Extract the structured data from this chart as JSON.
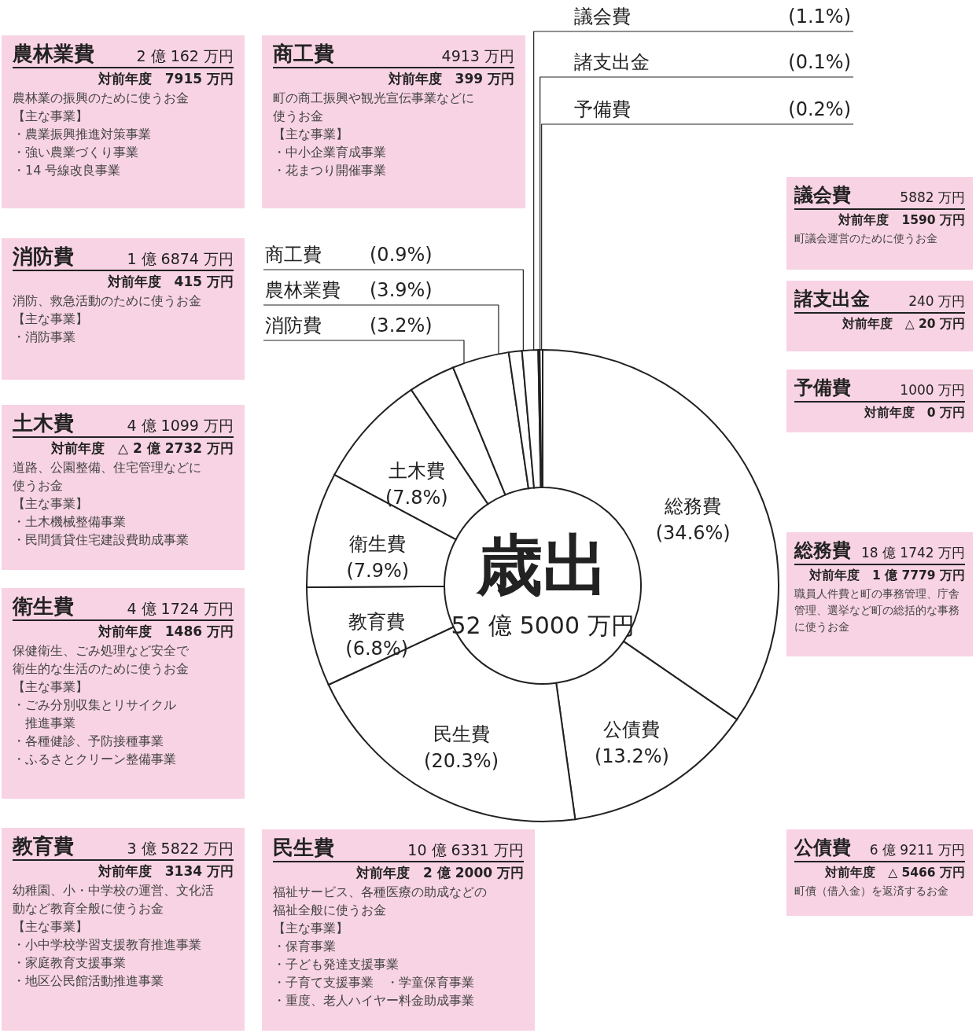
{
  "chart_data": [
    {
      "type": "donut",
      "title": "歳出",
      "subtitle": "52 億 5000 万円",
      "categories": [
        "総務費",
        "公債費",
        "民生費",
        "教育費",
        "衛生費",
        "土木費",
        "消防費",
        "農林業費",
        "商工費",
        "議会費",
        "諸支出金",
        "予備費"
      ],
      "values": [
        34.6,
        13.2,
        20.3,
        6.8,
        7.9,
        7.8,
        3.2,
        3.9,
        0.9,
        1.1,
        0.1,
        0.2
      ],
      "value_labels": [
        "(34.6%)",
        "(13.2%)",
        "(20.3%)",
        "(6.8%)",
        "(7.9%)",
        "(7.8%)",
        "(3.2%)",
        "(3.9%)",
        "(0.9%)",
        "(1.1%)",
        "(0.1%)",
        "(0.2%)"
      ],
      "colors": [
        "#ffffff",
        "#ffffff",
        "#ffffff",
        "#ffffff",
        "#ffffff",
        "#ffffff",
        "#ffffff",
        "#ffffff",
        "#ffffff",
        "#ffffff",
        "#ffffff",
        "#ffffff"
      ]
    },
    {
      "type": "other",
      "title": "農林業費",
      "subtitle": "2 億 162 万円",
      "annotations": [
        "対前年度　7915 万円",
        "農林業の振興のために使うお金",
        "【主な事業】",
        "・農業振興推進対策事業",
        "・強い農業づくり事業",
        "・14 号線改良事業"
      ]
    },
    {
      "type": "other",
      "title": "商工費",
      "subtitle": "4913 万円",
      "annotations": [
        "対前年度　399 万円",
        "町の商工振興や観光宣伝事業などに",
        "使うお金",
        "【主な事業】",
        "・中小企業育成事業",
        "・花まつり開催事業"
      ]
    },
    {
      "type": "other",
      "title": "議会費",
      "subtitle": "5882 万円",
      "annotations": [
        "対前年度　1590 万円",
        "町議会運営のために使うお金"
      ]
    },
    {
      "type": "other",
      "title": "諸支出金",
      "subtitle": "240 万円",
      "annotations": [
        "対前年度　△ 20 万円"
      ]
    },
    {
      "type": "other",
      "title": "予備費",
      "subtitle": "1000 万円",
      "annotations": [
        "対前年度　0 万円"
      ]
    },
    {
      "type": "other",
      "title": "消防費",
      "subtitle": "1 億 6874 万円",
      "annotations": [
        "対前年度　415 万円",
        "消防、救急活動のために使うお金",
        "【主な事業】",
        "・消防事業"
      ]
    },
    {
      "type": "other",
      "title": "土木費",
      "subtitle": "4 億 1099 万円",
      "annotations": [
        "対前年度　△ 2 億 2732 万円",
        "道路、公園整備、住宅管理などに",
        "使うお金",
        "【主な事業】",
        "・土木機械整備事業",
        "・民間賃貸住宅建設費助成事業"
      ]
    },
    {
      "type": "other",
      "title": "総務費",
      "subtitle": "18 億 1742 万円",
      "annotations": [
        "対前年度　1 億 7779 万円",
        "職員人件費と町の事務管理、庁舎",
        "管理、選挙など町の総括的な事務",
        "に使うお金"
      ]
    },
    {
      "type": "other",
      "title": "衛生費",
      "subtitle": "4 億 1724 万円",
      "annotations": [
        "対前年度　1486 万円",
        "保健衛生、ごみ処理など安全で",
        "衛生的な生活のために使うお金",
        "【主な事業】",
        "・ごみ分別収集とリサイクル",
        "　推進事業",
        "・各種健診、予防接種事業",
        "・ふるさとクリーン整備事業"
      ]
    },
    {
      "type": "other",
      "title": "教育費",
      "subtitle": "3 億 5822 万円",
      "annotations": [
        "対前年度　3134 万円",
        "幼稚園、小・中学校の運営、文化活",
        "動など教育全般に使うお金",
        "【主な事業】",
        "・小中学校学習支援教育推進事業",
        "・家庭教育支援事業",
        "・地区公民館活動推進事業"
      ]
    },
    {
      "type": "other",
      "title": "民生費",
      "subtitle": "10 億 6331 万円",
      "annotations": [
        "対前年度　2 億 2000 万円",
        "福祉サービス、各種医療の助成などの",
        "福祉全般に使うお金",
        "【主な事業】",
        "・保育事業",
        "・子ども発達支援事業",
        "・子育て支援事業　・学童保育事業",
        "・重度、老人ハイヤー料金助成事業"
      ]
    },
    {
      "type": "other",
      "title": "公債費",
      "subtitle": "6 億 9211 万円",
      "annotations": [
        "対前年度　△ 5466 万円",
        "町債（借入金）を返済するお金"
      ]
    }
  ]
}
